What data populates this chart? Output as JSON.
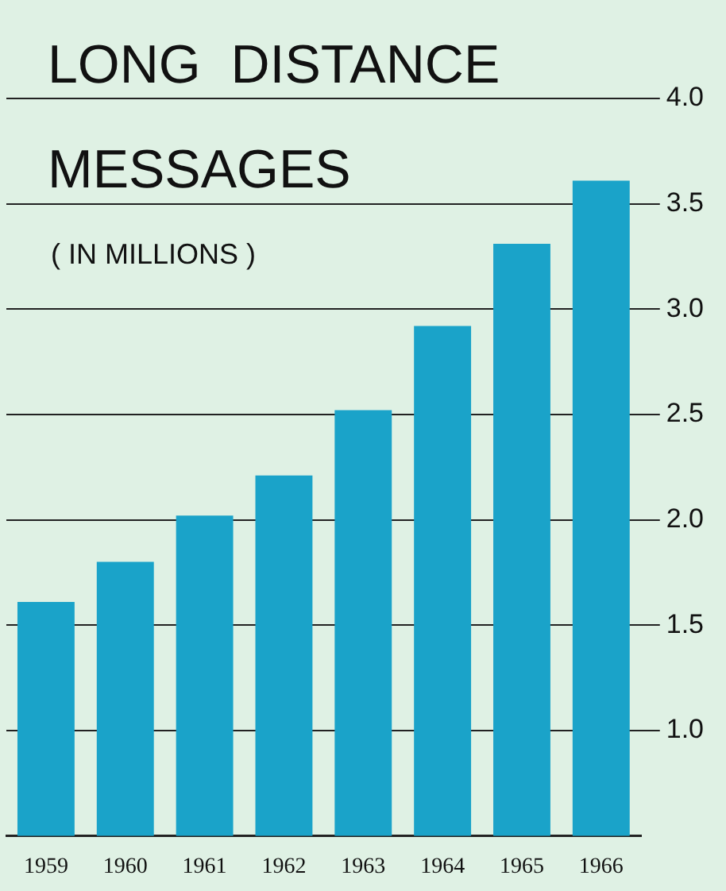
{
  "chart_data": {
    "type": "bar",
    "title": "LONG  DISTANCE\nMESSAGES",
    "subtitle": "( IN MILLIONS )",
    "categories": [
      "1959",
      "1960",
      "1961",
      "1962",
      "1963",
      "1964",
      "1965",
      "1966"
    ],
    "values": [
      1.61,
      1.8,
      2.02,
      2.21,
      2.52,
      2.92,
      3.31,
      3.61
    ],
    "color": "#1aa3c9",
    "ylim": [
      0.5,
      4.0
    ],
    "yticks": [
      {
        "value": 1,
        "label": "1.0"
      },
      {
        "value": 1.5,
        "label": "1.5"
      },
      {
        "value": 2,
        "label": "2.0"
      },
      {
        "value": 2.5,
        "label": "2.5"
      },
      {
        "value": 3,
        "label": "3.0"
      },
      {
        "value": 3.5,
        "label": "3.5"
      },
      {
        "value": 4,
        "label": "4.0"
      }
    ],
    "grid": "y"
  }
}
